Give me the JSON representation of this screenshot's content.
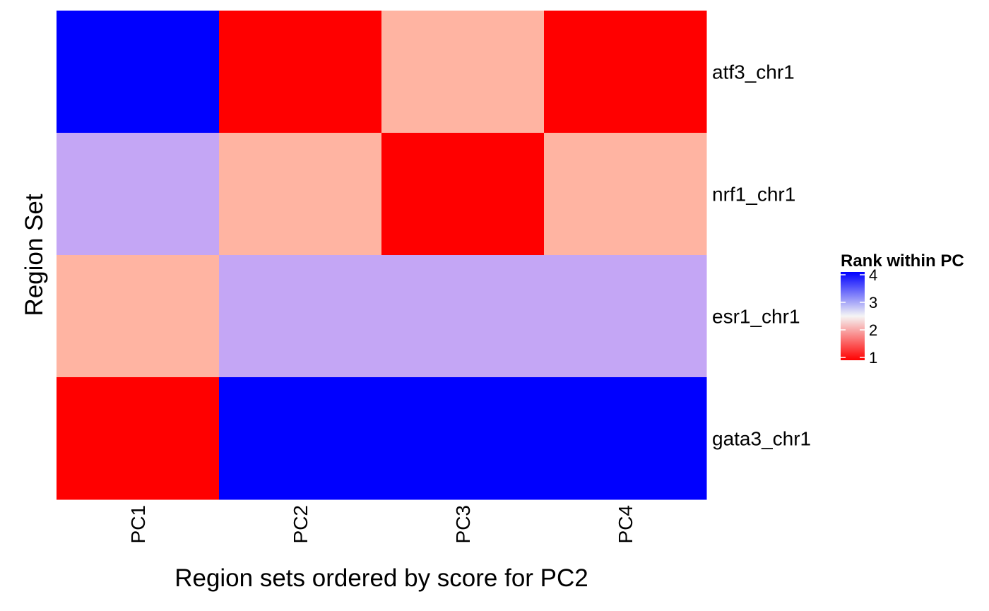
{
  "chart_data": {
    "type": "heatmap",
    "xlabel": "Region sets ordered by score for PC2",
    "ylabel": "Region Set",
    "x_categories": [
      "PC1",
      "PC2",
      "PC3",
      "PC4"
    ],
    "y_categories": [
      "atf3_chr1",
      "nrf1_chr1",
      "esr1_chr1",
      "gata3_chr1"
    ],
    "values": [
      [
        4,
        1,
        2,
        1
      ],
      [
        3,
        2,
        1,
        2
      ],
      [
        2,
        3,
        3,
        3
      ],
      [
        1,
        4,
        4,
        4
      ]
    ],
    "legend": {
      "title": "Rank within PC",
      "ticks": [
        4,
        3,
        2,
        1
      ],
      "min": 1,
      "max": 4,
      "placement": "right"
    },
    "colors": {
      "low": "#ff0000",
      "mid": "#f5f5f5",
      "high": "#0000ff",
      "rank1": "#ff0000",
      "rank2": "#ffb4a2",
      "rank3": "#c4a6f5",
      "rank4": "#0000ff"
    },
    "grid": false
  }
}
